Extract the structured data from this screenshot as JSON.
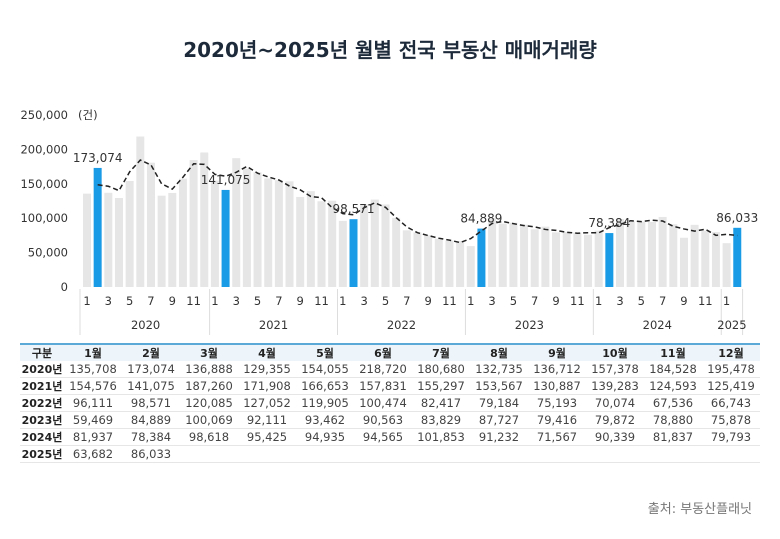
{
  "chart_data": {
    "type": "bar",
    "title": "2020년~2025년 월별 전국 부동산 매매거래량",
    "ylabel": "(건)",
    "ylim": [
      0,
      250000
    ],
    "yticks": [
      "0",
      "50,000",
      "100,000",
      "150,000",
      "200,000",
      "250,000"
    ],
    "xticks": [
      "1",
      "3",
      "5",
      "7",
      "9",
      "11"
    ],
    "years": [
      "2020",
      "2021",
      "2022",
      "2023",
      "2024",
      "2025"
    ],
    "months": [
      "1월",
      "2월",
      "3월",
      "4월",
      "5월",
      "6월",
      "7월",
      "8월",
      "9월",
      "10월",
      "11월",
      "12월"
    ],
    "row_header": "구분",
    "year_labels": [
      "2020년",
      "2021년",
      "2022년",
      "2023년",
      "2024년",
      "2025년"
    ],
    "values": [
      [
        135708,
        173074,
        136888,
        129355,
        154055,
        218720,
        180680,
        132735,
        136712,
        157378,
        184528,
        195478
      ],
      [
        154576,
        141075,
        187260,
        171908,
        166653,
        157831,
        155297,
        153567,
        130887,
        139283,
        124593,
        125419
      ],
      [
        96111,
        98571,
        120085,
        127052,
        119905,
        100474,
        82417,
        79184,
        75193,
        70074,
        67536,
        66743
      ],
      [
        59469,
        84889,
        100069,
        92111,
        93462,
        90563,
        83829,
        87727,
        79416,
        79872,
        78880,
        75878
      ],
      [
        81937,
        78384,
        98618,
        95425,
        94935,
        94565,
        101853,
        91232,
        71567,
        90339,
        81837,
        79793
      ],
      [
        63682,
        86033
      ]
    ],
    "highlight_month": "2월",
    "highlight_labels": [
      "173,074",
      "141,075",
      "98,571",
      "84,889",
      "78,384",
      "86,033"
    ],
    "trend_line": "3-month moving average (dashed)",
    "colors": {
      "bar": "#e6e6e6",
      "highlight": "#1a9be6",
      "trend": "#222222",
      "table_header_border": "#5aa9d6"
    },
    "grid": false
  },
  "source": "출처: 부동산플래닛"
}
